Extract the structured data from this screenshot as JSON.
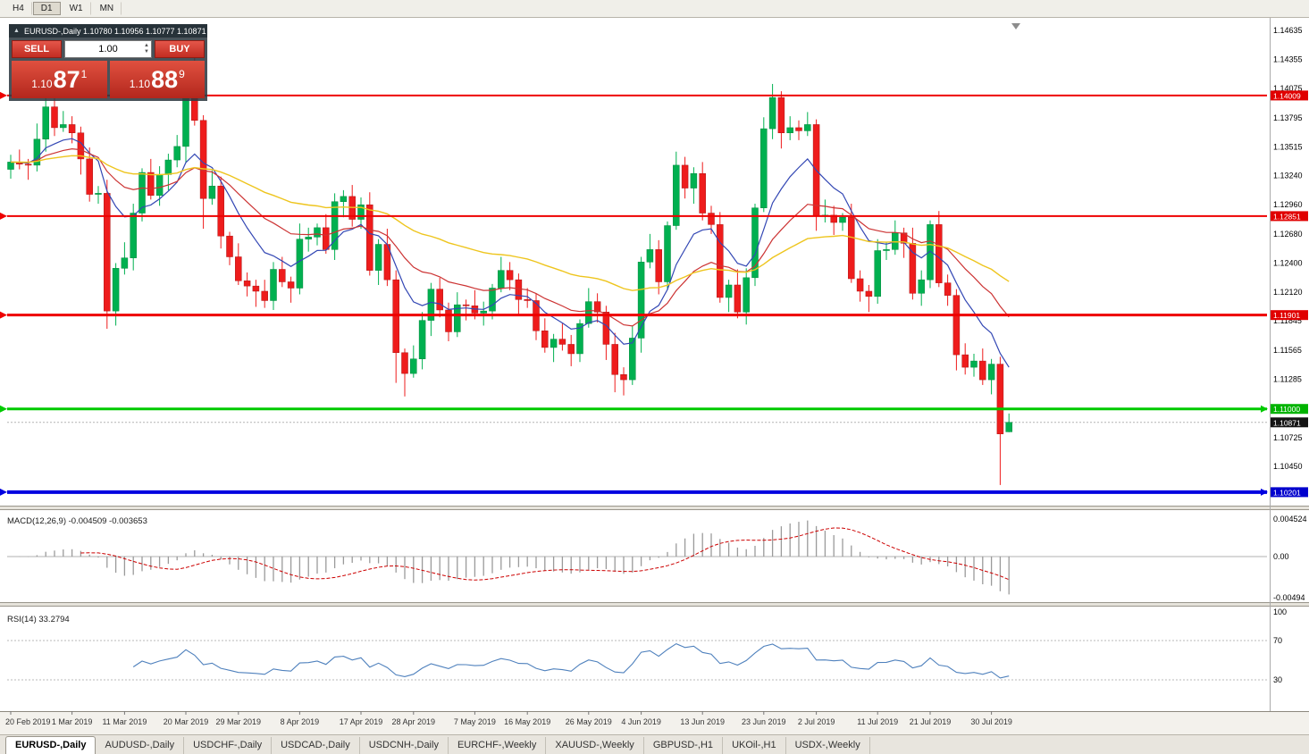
{
  "toolbar": {
    "timeframes": [
      {
        "label": "H4",
        "active": false
      },
      {
        "label": "D1",
        "active": true
      },
      {
        "label": "W1",
        "active": false
      },
      {
        "label": "MN",
        "active": false
      }
    ]
  },
  "chart": {
    "title_text": "EURUSD-,Daily 1.10780 1.10956 1.10777 1.10871",
    "one_click": {
      "sell_label": "SELL",
      "buy_label": "BUY",
      "volume": "1.00",
      "sell_price_prefix": "1.10",
      "sell_price_big": "87",
      "sell_price_sup": "1",
      "buy_price_prefix": "1.10",
      "buy_price_big": "88",
      "buy_price_sup": "9"
    },
    "price_axis": {
      "ticks": [
        "1.14635",
        "1.14355",
        "1.14075",
        "1.13795",
        "1.13515",
        "1.13240",
        "1.12960",
        "1.12680",
        "1.12400",
        "1.12120",
        "1.11845",
        "1.11565",
        "1.11285",
        "1.10725",
        "1.10450"
      ]
    },
    "hlines": [
      {
        "label": "1.14009",
        "price": 1.14009,
        "color": "#ee0000",
        "width": 2,
        "badge": "#e00000",
        "right_arrow": false
      },
      {
        "label": "1.12851",
        "price": 1.12851,
        "color": "#ee0000",
        "width": 2,
        "badge": "#e00000",
        "right_arrow": false
      },
      {
        "label": "1.11901",
        "price": 1.11901,
        "color": "#ee0000",
        "width": 3,
        "badge": "#e00000",
        "right_arrow": false
      },
      {
        "label": "1.11000",
        "price": 1.11,
        "color": "#00ca00",
        "width": 3,
        "badge": "#00b300",
        "right_arrow": true
      },
      {
        "label": "1.10201",
        "price": 1.10201,
        "color": "#0000e0",
        "width": 4,
        "badge": "#0000cd",
        "right_arrow": true
      }
    ],
    "current_price": {
      "label": "1.10871",
      "value": 1.10871,
      "badge": "#141414",
      "line_color": "#b4b4b4"
    },
    "date_axis": [
      "20 Feb 2019",
      "1 Mar 2019",
      "11 Mar 2019",
      "20 Mar 2019",
      "29 Mar 2019",
      "8 Apr 2019",
      "17 Apr 2019",
      "28 Apr 2019",
      "7 May 2019",
      "16 May 2019",
      "26 May 2019",
      "4 Jun 2019",
      "13 Jun 2019",
      "23 Jun 2019",
      "2 Jul 2019",
      "11 Jul 2019",
      "21 Jul 2019",
      "30 Jul 2019"
    ],
    "colors": {
      "up": "#00b050",
      "down": "#ee1c1c",
      "up_edge": "#008a3c",
      "down_edge": "#b01414"
    }
  },
  "chart_data": {
    "type": "candlestick",
    "symbol": "EURUSD-",
    "timeframe": "Daily",
    "last_bar": {
      "open": 1.1078,
      "high": 1.10956,
      "low": 1.10777,
      "close": 1.10871
    },
    "candles": [
      [
        1.133,
        1.1344,
        1.1321,
        1.1337
      ],
      [
        1.1337,
        1.1349,
        1.133,
        1.1335
      ],
      [
        1.1335,
        1.134,
        1.132,
        1.1334
      ],
      [
        1.1334,
        1.1374,
        1.1328,
        1.1359
      ],
      [
        1.1359,
        1.1403,
        1.1347,
        1.139
      ],
      [
        1.139,
        1.1404,
        1.1362,
        1.137
      ],
      [
        1.137,
        1.1386,
        1.1366,
        1.1373
      ],
      [
        1.1373,
        1.1381,
        1.1355,
        1.1365
      ],
      [
        1.1365,
        1.1371,
        1.1325,
        1.134
      ],
      [
        1.134,
        1.1351,
        1.1299,
        1.1306
      ],
      [
        1.1306,
        1.1314,
        1.1297,
        1.1307
      ],
      [
        1.1307,
        1.132,
        1.1177,
        1.1194
      ],
      [
        1.1194,
        1.124,
        1.118,
        1.1235
      ],
      [
        1.1235,
        1.126,
        1.1229,
        1.1245
      ],
      [
        1.1245,
        1.1297,
        1.1233,
        1.1288
      ],
      [
        1.1288,
        1.1331,
        1.128,
        1.1327
      ],
      [
        1.1327,
        1.134,
        1.1301,
        1.1305
      ],
      [
        1.1305,
        1.1333,
        1.1295,
        1.1325
      ],
      [
        1.1325,
        1.1345,
        1.131,
        1.1339
      ],
      [
        1.1339,
        1.1363,
        1.1332,
        1.1352
      ],
      [
        1.1352,
        1.143,
        1.1336,
        1.1412
      ],
      [
        1.1412,
        1.1438,
        1.1372,
        1.1377
      ],
      [
        1.1377,
        1.1382,
        1.1273,
        1.1302
      ],
      [
        1.1302,
        1.1329,
        1.1296,
        1.1314
      ],
      [
        1.1314,
        1.1323,
        1.1254,
        1.1266
      ],
      [
        1.1266,
        1.127,
        1.1238,
        1.1246
      ],
      [
        1.1246,
        1.1259,
        1.1219,
        1.1223
      ],
      [
        1.1223,
        1.1231,
        1.1208,
        1.1218
      ],
      [
        1.1218,
        1.1224,
        1.1198,
        1.1213
      ],
      [
        1.1213,
        1.1224,
        1.1197,
        1.1204
      ],
      [
        1.1204,
        1.1241,
        1.1195,
        1.1234
      ],
      [
        1.1234,
        1.1246,
        1.1217,
        1.1222
      ],
      [
        1.1222,
        1.1227,
        1.1202,
        1.1216
      ],
      [
        1.1216,
        1.1278,
        1.121,
        1.1263
      ],
      [
        1.1263,
        1.1274,
        1.1251,
        1.1265
      ],
      [
        1.1265,
        1.1278,
        1.1257,
        1.1274
      ],
      [
        1.1274,
        1.1287,
        1.1249,
        1.1253
      ],
      [
        1.1253,
        1.1307,
        1.1243,
        1.1299
      ],
      [
        1.1299,
        1.131,
        1.1284,
        1.1304
      ],
      [
        1.1304,
        1.1315,
        1.1275,
        1.1282
      ],
      [
        1.1282,
        1.1303,
        1.1273,
        1.1296
      ],
      [
        1.1296,
        1.1308,
        1.1228,
        1.1233
      ],
      [
        1.1233,
        1.1263,
        1.1219,
        1.1258
      ],
      [
        1.1258,
        1.1273,
        1.1218,
        1.1224
      ],
      [
        1.1224,
        1.1233,
        1.1125,
        1.1154
      ],
      [
        1.1154,
        1.1158,
        1.1112,
        1.1134
      ],
      [
        1.1134,
        1.1161,
        1.113,
        1.1148
      ],
      [
        1.1148,
        1.1193,
        1.1138,
        1.1185
      ],
      [
        1.1185,
        1.1221,
        1.117,
        1.1215
      ],
      [
        1.1215,
        1.1226,
        1.1188,
        1.1195
      ],
      [
        1.1195,
        1.1202,
        1.1165,
        1.1174
      ],
      [
        1.1174,
        1.1212,
        1.1169,
        1.12
      ],
      [
        1.12,
        1.1205,
        1.1185,
        1.1199
      ],
      [
        1.1199,
        1.1214,
        1.1186,
        1.1192
      ],
      [
        1.1192,
        1.1203,
        1.118,
        1.1194
      ],
      [
        1.1194,
        1.122,
        1.1186,
        1.1216
      ],
      [
        1.1216,
        1.1246,
        1.1212,
        1.1233
      ],
      [
        1.1233,
        1.1241,
        1.1214,
        1.1224
      ],
      [
        1.1224,
        1.123,
        1.119,
        1.1205
      ],
      [
        1.1205,
        1.1216,
        1.1197,
        1.1204
      ],
      [
        1.1204,
        1.1211,
        1.1166,
        1.1175
      ],
      [
        1.1175,
        1.1187,
        1.1154,
        1.1159
      ],
      [
        1.1159,
        1.1172,
        1.1145,
        1.1167
      ],
      [
        1.1167,
        1.1182,
        1.1156,
        1.1162
      ],
      [
        1.1162,
        1.1171,
        1.1141,
        1.1153
      ],
      [
        1.1153,
        1.1186,
        1.1145,
        1.1182
      ],
      [
        1.1182,
        1.1216,
        1.1178,
        1.1203
      ],
      [
        1.1203,
        1.1211,
        1.1183,
        1.1193
      ],
      [
        1.1193,
        1.1199,
        1.1147,
        1.1162
      ],
      [
        1.1162,
        1.1173,
        1.1116,
        1.1133
      ],
      [
        1.1133,
        1.114,
        1.1113,
        1.1128
      ],
      [
        1.1128,
        1.118,
        1.1123,
        1.1168
      ],
      [
        1.1168,
        1.1246,
        1.1154,
        1.1241
      ],
      [
        1.1241,
        1.1268,
        1.1235,
        1.1253
      ],
      [
        1.1253,
        1.1262,
        1.121,
        1.1222
      ],
      [
        1.1222,
        1.128,
        1.1214,
        1.1276
      ],
      [
        1.1276,
        1.1347,
        1.1272,
        1.1334
      ],
      [
        1.1334,
        1.1342,
        1.1302,
        1.1312
      ],
      [
        1.1312,
        1.1332,
        1.1297,
        1.1326
      ],
      [
        1.1326,
        1.1337,
        1.1281,
        1.1288
      ],
      [
        1.1288,
        1.1295,
        1.1268,
        1.1277
      ],
      [
        1.1277,
        1.1289,
        1.1202,
        1.1207
      ],
      [
        1.1207,
        1.1224,
        1.1193,
        1.1219
      ],
      [
        1.1219,
        1.1234,
        1.1187,
        1.1193
      ],
      [
        1.1193,
        1.1235,
        1.1181,
        1.1226
      ],
      [
        1.1226,
        1.1297,
        1.1218,
        1.1293
      ],
      [
        1.1293,
        1.138,
        1.1289,
        1.1369
      ],
      [
        1.1369,
        1.1412,
        1.1359,
        1.1399
      ],
      [
        1.1399,
        1.1405,
        1.135,
        1.1365
      ],
      [
        1.1365,
        1.1381,
        1.1358,
        1.137
      ],
      [
        1.137,
        1.1377,
        1.1358,
        1.1367
      ],
      [
        1.1367,
        1.1385,
        1.1362,
        1.1373
      ],
      [
        1.1373,
        1.1378,
        1.1271,
        1.1285
      ],
      [
        1.1285,
        1.1301,
        1.1279,
        1.1286
      ],
      [
        1.1286,
        1.1295,
        1.1267,
        1.1279
      ],
      [
        1.1279,
        1.1288,
        1.1271,
        1.1284
      ],
      [
        1.1284,
        1.1297,
        1.1221,
        1.1225
      ],
      [
        1.1225,
        1.1233,
        1.1203,
        1.1213
      ],
      [
        1.1213,
        1.1219,
        1.1193,
        1.1208
      ],
      [
        1.1208,
        1.1263,
        1.1201,
        1.1252
      ],
      [
        1.1252,
        1.126,
        1.1243,
        1.1253
      ],
      [
        1.1253,
        1.1281,
        1.1248,
        1.1269
      ],
      [
        1.1269,
        1.1274,
        1.1245,
        1.1259
      ],
      [
        1.1259,
        1.1274,
        1.1205,
        1.1211
      ],
      [
        1.1211,
        1.1233,
        1.1199,
        1.1224
      ],
      [
        1.1224,
        1.1281,
        1.1216,
        1.1277
      ],
      [
        1.1277,
        1.129,
        1.1217,
        1.1221
      ],
      [
        1.1221,
        1.1229,
        1.1199,
        1.1209
      ],
      [
        1.1209,
        1.1215,
        1.1137,
        1.1152
      ],
      [
        1.1152,
        1.1163,
        1.1133,
        1.114
      ],
      [
        1.114,
        1.1153,
        1.1131,
        1.1146
      ],
      [
        1.1146,
        1.1158,
        1.1123,
        1.1128
      ],
      [
        1.1128,
        1.1148,
        1.1114,
        1.1143
      ],
      [
        1.1143,
        1.115,
        1.1027,
        1.1076
      ],
      [
        1.1078,
        1.10956,
        1.10777,
        1.10871
      ]
    ],
    "moving_averages": [
      {
        "period": 9,
        "method": "ema",
        "color": "#3347b4",
        "width": 1.2
      },
      {
        "period": 21,
        "method": "ema",
        "color": "#cc3333",
        "width": 1.2
      },
      {
        "period": 50,
        "method": "ema",
        "color": "#eec51e",
        "width": 1.4
      }
    ],
    "indicators": {
      "macd": {
        "label": "MACD(12,26,9)",
        "value_text": "-0.004509 -0.003653",
        "fast": 12,
        "slow": 26,
        "signal": 9,
        "axis_labels": [
          "0.004524",
          "0.00",
          "-0.00494"
        ],
        "hist_color": "#9a9a9a",
        "signal_color": "#cc0000"
      },
      "rsi": {
        "label": "RSI(14)",
        "value_text": "33.2794",
        "period": 14,
        "levels": [
          70,
          30
        ],
        "axis_labels": [
          "100",
          "70",
          "30"
        ],
        "line_color": "#4f81bd",
        "level_color": "#b8b8b8"
      }
    }
  },
  "tabs": [
    {
      "label": "EURUSD-,Daily",
      "active": true
    },
    {
      "label": "AUDUSD-,Daily",
      "active": false
    },
    {
      "label": "USDCHF-,Daily",
      "active": false
    },
    {
      "label": "USDCAD-,Daily",
      "active": false
    },
    {
      "label": "USDCNH-,Daily",
      "active": false
    },
    {
      "label": "EURCHF-,Weekly",
      "active": false
    },
    {
      "label": "XAUUSD-,Weekly",
      "active": false
    },
    {
      "label": "GBPUSD-,H1",
      "active": false
    },
    {
      "label": "UKOil-,H1",
      "active": false
    },
    {
      "label": "USDX-,Weekly",
      "active": false
    }
  ]
}
